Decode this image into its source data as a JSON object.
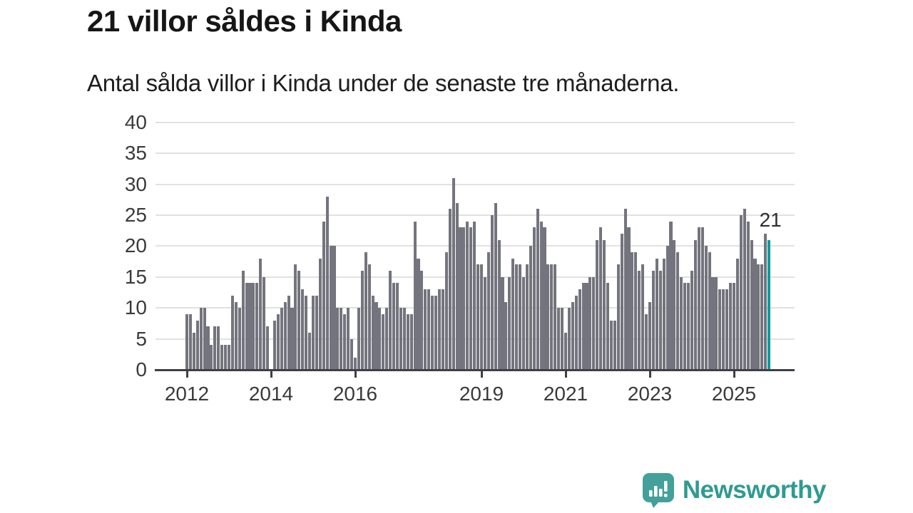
{
  "header": {
    "title": "21 villor såldes i Kinda",
    "subtitle": "Antal sålda villor i Kinda under de senaste tre månaderna."
  },
  "chart_data": {
    "type": "bar",
    "title": "21 villor såldes i Kinda",
    "subtitle": "Antal sålda villor i Kinda under de senaste tre månaderna.",
    "frequency": "monthly",
    "x_start_year": 2012,
    "values": [
      9,
      9,
      6,
      8,
      10,
      10,
      7,
      4,
      7,
      7,
      4,
      4,
      4,
      12,
      11,
      10,
      16,
      14,
      14,
      14,
      14,
      18,
      15,
      7,
      0,
      8,
      9,
      10,
      11,
      12,
      10,
      17,
      16,
      13,
      12,
      6,
      12,
      12,
      18,
      24,
      28,
      20,
      20,
      10,
      10,
      9,
      10,
      5,
      2,
      10,
      16,
      19,
      17,
      12,
      11,
      10,
      9,
      10,
      16,
      14,
      14,
      10,
      10,
      9,
      9,
      24,
      18,
      16,
      13,
      13,
      12,
      12,
      13,
      13,
      19,
      26,
      31,
      27,
      23,
      23,
      24,
      23,
      24,
      17,
      17,
      15,
      19,
      25,
      27,
      21,
      15,
      11,
      15,
      18,
      17,
      17,
      15,
      17,
      20,
      23,
      26,
      24,
      23,
      17,
      17,
      17,
      10,
      10,
      6,
      10,
      11,
      12,
      13,
      14,
      14,
      15,
      15,
      21,
      23,
      21,
      14,
      8,
      8,
      17,
      22,
      26,
      23,
      19,
      19,
      16,
      17,
      9,
      11,
      16,
      18,
      16,
      18,
      20,
      24,
      21,
      19,
      15,
      14,
      14,
      16,
      21,
      23,
      23,
      20,
      19,
      15,
      15,
      13,
      13,
      13,
      14,
      14,
      18,
      25,
      26,
      24,
      21,
      18,
      17,
      17,
      22,
      21
    ],
    "highlight_last_bar": true,
    "highlight_value_label": "21",
    "y_ticks": [
      0,
      5,
      10,
      15,
      20,
      25,
      30,
      35,
      40
    ],
    "x_tick_years": [
      2012,
      2014,
      2016,
      2019,
      2021,
      2023,
      2025
    ],
    "ylim": [
      0,
      40
    ],
    "grid": true,
    "legend": "none",
    "colors": {
      "bar": "#73747d",
      "highlight": "#0f9c9c",
      "grid": "#e1e1e1",
      "axis": "#3f3f47"
    }
  },
  "footer": {
    "brand": "Newsworthy",
    "logo_icon": "speech-bubble-bar-chart-icon",
    "brand_text_color": "#2f9a92",
    "icon_color": "#43a09a"
  }
}
